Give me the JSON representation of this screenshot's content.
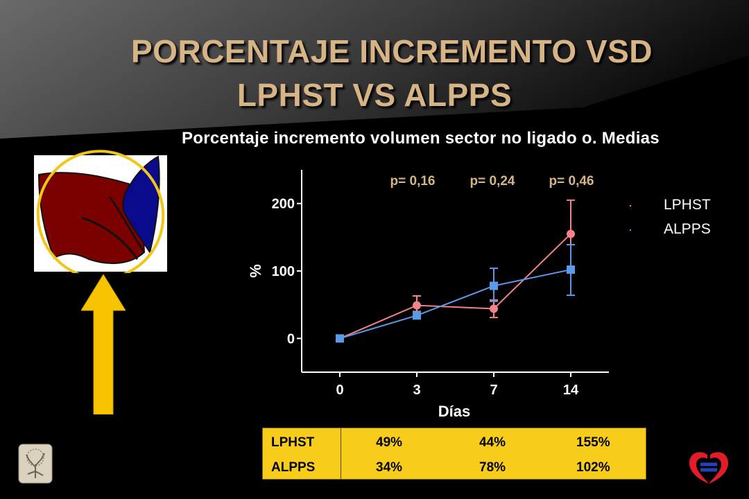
{
  "slide": {
    "title_line1": "PORCENTAJE INCREMENTO VSD",
    "title_line2": "LPHST VS ALPPS",
    "subtitle": "Porcentaje incremento volumen sector no ligado o. Medias"
  },
  "colors": {
    "title": "#d7b486",
    "lphst": "#f4828a",
    "alpps": "#5a9ae8",
    "table_bg": "#f8cc1b",
    "arrow": "#f8c300",
    "liver_red": "#7b0000",
    "liver_blue": "#0a0a8c"
  },
  "chart_data": {
    "type": "line",
    "x": [
      0,
      3,
      7,
      14
    ],
    "categories": [
      "0",
      "3",
      "7",
      "14"
    ],
    "xlabel": "Días",
    "ylabel": "%",
    "ylim": [
      -50,
      250
    ],
    "yticks": [
      0,
      100,
      200
    ],
    "grid": false,
    "legend_position": "top-right",
    "p_values": [
      "p= 0,16",
      "p= 0,24",
      "p= 0,46"
    ],
    "series": [
      {
        "name": "LPHST",
        "values": [
          0,
          49,
          44,
          155
        ],
        "err_low": [
          0,
          40,
          31,
          105
        ],
        "err_high": [
          0,
          63,
          57,
          205
        ]
      },
      {
        "name": "ALPPS",
        "values": [
          0,
          34,
          78,
          102
        ],
        "err_low": [
          0,
          34,
          55,
          64
        ],
        "err_high": [
          0,
          34,
          104,
          139
        ]
      }
    ]
  },
  "table": {
    "rows": [
      {
        "label": "LPHST",
        "values": [
          "49%",
          "44%",
          "155%"
        ]
      },
      {
        "label": "ALPPS",
        "values": [
          "34%",
          "78%",
          "102%"
        ]
      }
    ]
  }
}
